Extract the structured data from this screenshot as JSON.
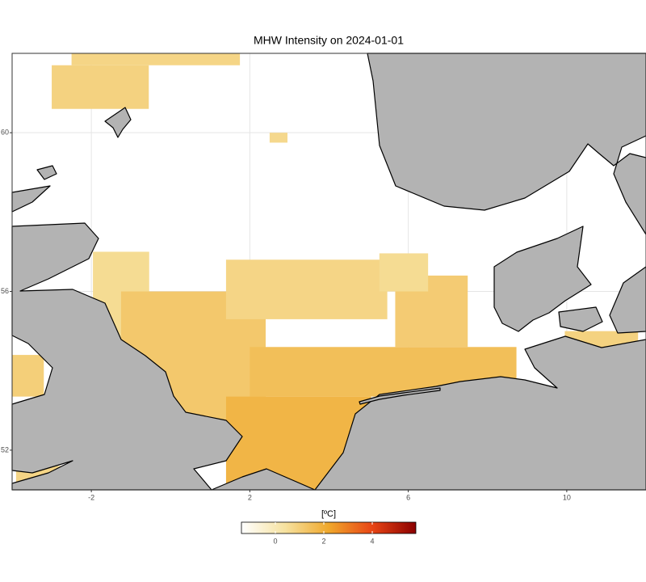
{
  "chart_data": {
    "type": "heatmap",
    "title": "MHW Intensity on 2024-01-01",
    "xlim": [
      -4,
      12
    ],
    "ylim": [
      51,
      62
    ],
    "xticks": [
      -2,
      2,
      6,
      10
    ],
    "yticks": [
      52,
      56,
      60
    ],
    "grid": true,
    "patches": [
      {
        "lon": [
          -2.5,
          1.75
        ],
        "lat": [
          61.7,
          62
        ],
        "value": 0.8
      },
      {
        "lon": [
          -3.0,
          -0.55
        ],
        "lat": [
          60.6,
          61.7
        ],
        "value": 0.9
      },
      {
        "lon": [
          2.5,
          2.95
        ],
        "lat": [
          59.75,
          60
        ],
        "value": 0.7
      },
      {
        "lon": [
          -1.96,
          -0.54
        ],
        "lat": [
          54.8,
          57.0
        ],
        "value": 0.6
      },
      {
        "lon": [
          -1.25,
          2.4
        ],
        "lat": [
          52.7,
          56.0
        ],
        "value": 1.2
      },
      {
        "lon": [
          1.4,
          5.47
        ],
        "lat": [
          55.3,
          56.8
        ],
        "value": 0.8
      },
      {
        "lon": [
          2.0,
          8.73
        ],
        "lat": [
          53.35,
          54.6
        ],
        "value": 1.5
      },
      {
        "lon": [
          5.67,
          7.5
        ],
        "lat": [
          54.6,
          56.4
        ],
        "value": 1.1
      },
      {
        "lon": [
          1.4,
          5.06
        ],
        "lat": [
          51.0,
          53.35
        ],
        "value": 1.8
      },
      {
        "lon": [
          5.27,
          6.5
        ],
        "lat": [
          56.0,
          56.96
        ],
        "value": 0.6
      },
      {
        "lon": [
          9.95,
          11.8
        ],
        "lat": [
          54.0,
          55.0
        ],
        "value": 0.9
      },
      {
        "lon": [
          -4.0,
          -3.2
        ],
        "lat": [
          53.35,
          54.4
        ],
        "value": 1.0
      },
      {
        "lon": [
          -3.9,
          -2.7
        ],
        "lat": [
          51.2,
          51.6
        ],
        "value": 0.8
      }
    ],
    "colorbar": {
      "label": "[ºC]",
      "lim": [
        -1.4,
        5.8
      ],
      "ticks": [
        0,
        2,
        4
      ],
      "colors": [
        "#ffffff",
        "#f6e2a0",
        "#f0a82c",
        "#e84515",
        "#8b0000"
      ]
    }
  }
}
